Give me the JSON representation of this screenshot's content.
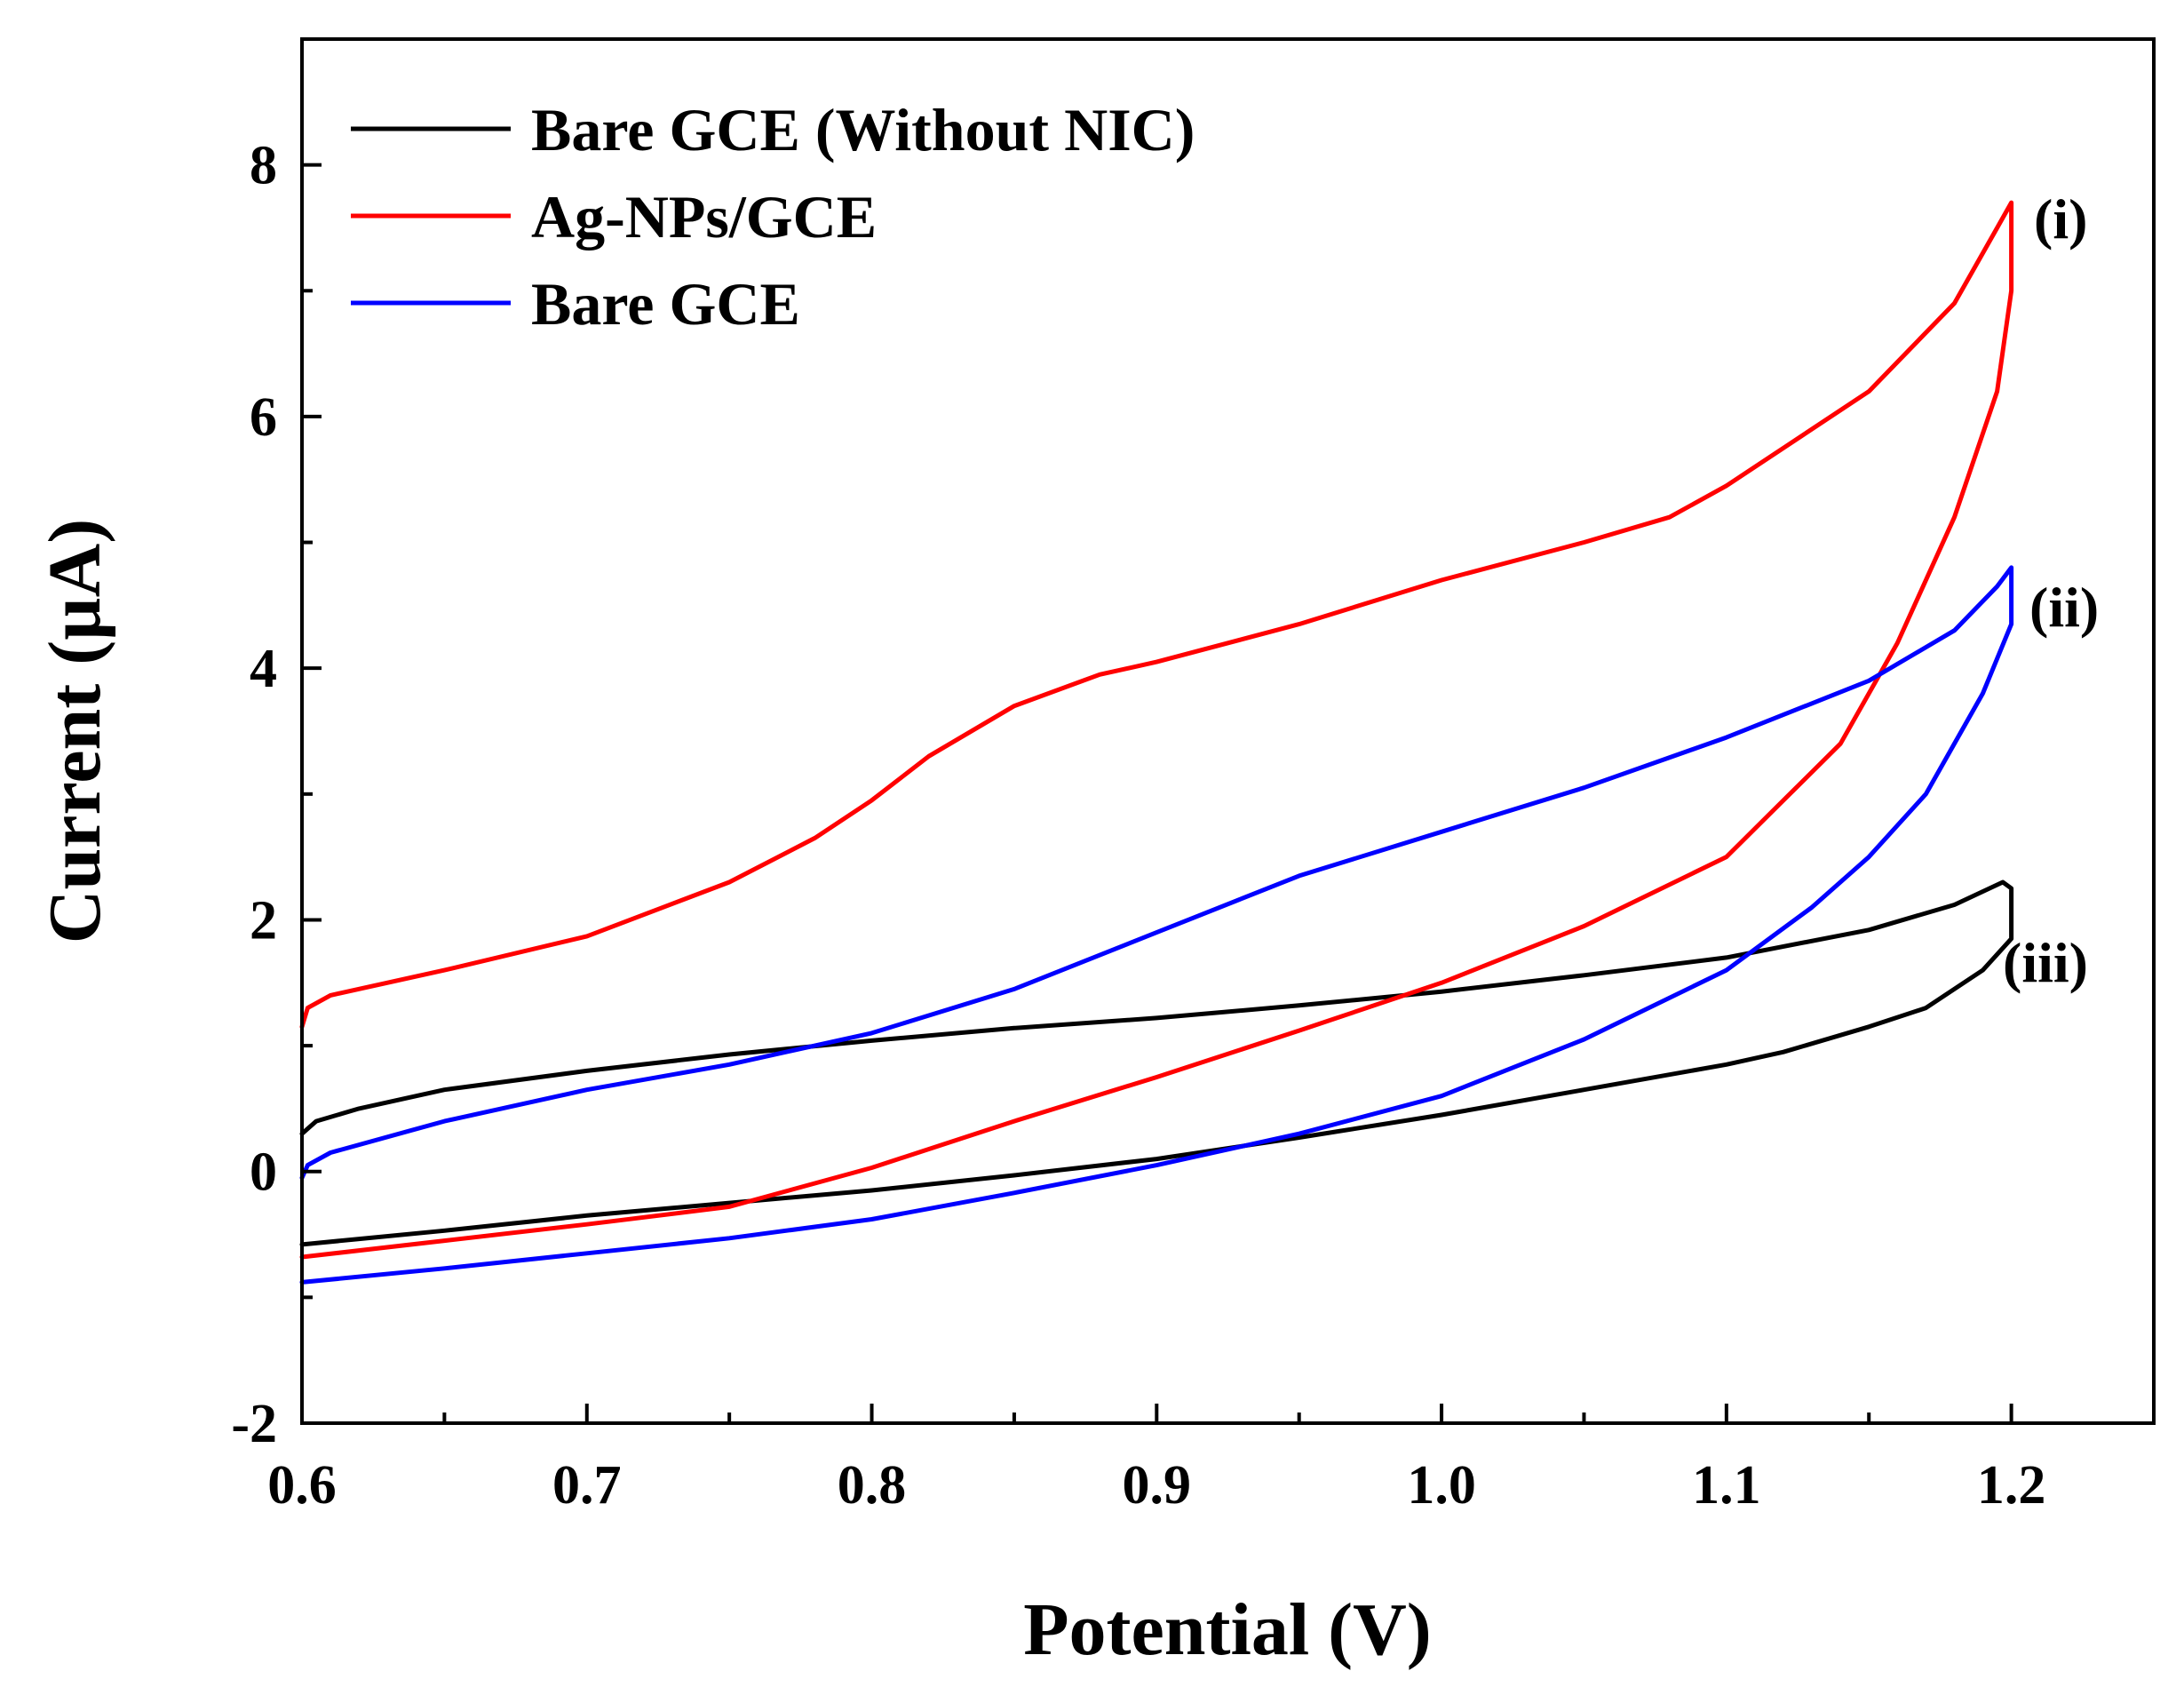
{
  "chart_data": {
    "type": "line",
    "title": "",
    "xlabel": "Potential (V)",
    "ylabel": "Current (µA)",
    "xlim": [
      0.6,
      1.25
    ],
    "ylim": [
      -2,
      9
    ],
    "x_ticks": [
      0.6,
      0.7,
      0.8,
      0.9,
      1.0,
      1.1,
      1.2
    ],
    "x_tick_labels": [
      "0.6",
      "0.7",
      "0.8",
      "0.9",
      "1.0",
      "1.1",
      "1.2"
    ],
    "y_ticks": [
      -2,
      0,
      2,
      4,
      6,
      8
    ],
    "y_tick_labels": [
      "-2",
      "0",
      "2",
      "4",
      "6",
      "8"
    ],
    "legend_position": "top-left",
    "series": [
      {
        "name": "Bare GCE (Without NIC)",
        "color": "#000000",
        "curve_label": "(iii)",
        "x": [
          0.6,
          0.605,
          0.62,
          0.65,
          0.7,
          0.75,
          0.8,
          0.85,
          0.9,
          0.95,
          1.0,
          1.05,
          1.1,
          1.15,
          1.18,
          1.197,
          1.2,
          1.2,
          1.19,
          1.17,
          1.15,
          1.12,
          1.1,
          1.05,
          1.0,
          0.95,
          0.9,
          0.85,
          0.8,
          0.75,
          0.7,
          0.65,
          0.6
        ],
        "y": [
          0.3,
          0.4,
          0.5,
          0.65,
          0.8,
          0.93,
          1.04,
          1.14,
          1.22,
          1.32,
          1.43,
          1.56,
          1.7,
          1.92,
          2.12,
          2.3,
          2.25,
          1.85,
          1.6,
          1.3,
          1.15,
          0.95,
          0.85,
          0.65,
          0.45,
          0.27,
          0.1,
          -0.03,
          -0.15,
          -0.25,
          -0.35,
          -0.47,
          -0.58
        ]
      },
      {
        "name": "Ag-NPs/GCE",
        "color": "#ff0000",
        "curve_label": "(i)",
        "x": [
          0.6,
          0.602,
          0.61,
          0.65,
          0.7,
          0.75,
          0.78,
          0.8,
          0.82,
          0.85,
          0.88,
          0.9,
          0.95,
          1.0,
          1.05,
          1.08,
          1.1,
          1.12,
          1.15,
          1.18,
          1.195,
          1.2,
          1.2,
          1.195,
          1.18,
          1.16,
          1.14,
          1.12,
          1.1,
          1.05,
          1.0,
          0.95,
          0.9,
          0.85,
          0.8,
          0.75,
          0.7,
          0.65,
          0.6
        ],
        "y": [
          1.15,
          1.3,
          1.4,
          1.6,
          1.87,
          2.3,
          2.65,
          2.95,
          3.3,
          3.7,
          3.95,
          4.05,
          4.35,
          4.7,
          5.0,
          5.2,
          5.45,
          5.75,
          6.2,
          6.9,
          7.5,
          7.7,
          7.0,
          6.2,
          5.2,
          4.2,
          3.4,
          2.95,
          2.5,
          1.95,
          1.5,
          1.12,
          0.75,
          0.4,
          0.03,
          -0.28,
          -0.42,
          -0.55,
          -0.68
        ]
      },
      {
        "name": "Bare GCE",
        "color": "#0000ff",
        "curve_label": "(ii)",
        "x": [
          0.6,
          0.602,
          0.61,
          0.65,
          0.7,
          0.75,
          0.8,
          0.85,
          0.9,
          0.95,
          1.0,
          1.05,
          1.1,
          1.15,
          1.18,
          1.195,
          1.2,
          1.2,
          1.19,
          1.17,
          1.15,
          1.13,
          1.1,
          1.05,
          1.0,
          0.95,
          0.9,
          0.85,
          0.8,
          0.75,
          0.7,
          0.65,
          0.6
        ],
        "y": [
          -0.05,
          0.05,
          0.15,
          0.4,
          0.65,
          0.85,
          1.1,
          1.45,
          1.9,
          2.35,
          2.7,
          3.05,
          3.45,
          3.9,
          4.3,
          4.65,
          4.8,
          4.35,
          3.8,
          3.0,
          2.5,
          2.1,
          1.6,
          1.05,
          0.6,
          0.3,
          0.05,
          -0.17,
          -0.38,
          -0.53,
          -0.65,
          -0.77,
          -0.88
        ]
      }
    ]
  }
}
